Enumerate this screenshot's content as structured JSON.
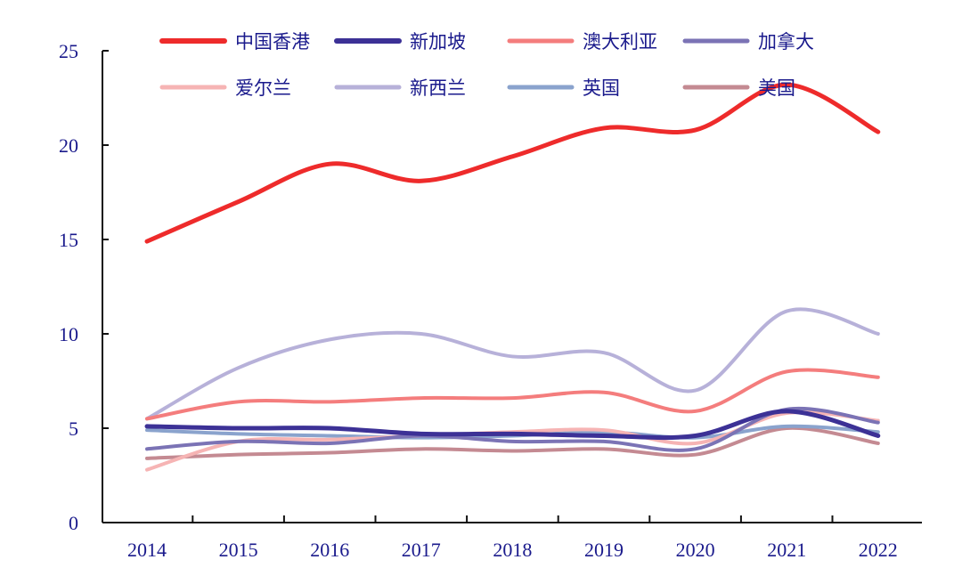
{
  "chart_data": {
    "type": "line",
    "title": "",
    "xlabel": "",
    "ylabel": "",
    "x": [
      "2014",
      "2015",
      "2016",
      "2017",
      "2018",
      "2019",
      "2020",
      "2021",
      "2022"
    ],
    "ylim": [
      0,
      25
    ],
    "yticks": [
      "0",
      "5",
      "10",
      "15",
      "20",
      "25"
    ],
    "grid": false,
    "smooth": true,
    "legend_position": "top",
    "series": [
      {
        "name": "中国香港",
        "color": "#ee2b2b",
        "width": 5,
        "values": [
          14.9,
          17.0,
          19.0,
          18.1,
          19.4,
          20.9,
          20.8,
          23.2,
          20.7
        ]
      },
      {
        "name": "新加坡",
        "color": "#3c3196",
        "width": 5,
        "values": [
          5.1,
          5.0,
          5.0,
          4.7,
          4.7,
          4.6,
          4.6,
          5.9,
          4.6
        ]
      },
      {
        "name": "澳大利亚",
        "color": "#f47d7d",
        "width": 4,
        "values": [
          5.5,
          6.4,
          6.4,
          6.6,
          6.6,
          6.9,
          5.9,
          8.0,
          7.7
        ]
      },
      {
        "name": "加拿大",
        "color": "#7b73b5",
        "width": 4,
        "values": [
          3.9,
          4.3,
          4.2,
          4.6,
          4.3,
          4.3,
          3.9,
          6.0,
          5.3
        ]
      },
      {
        "name": "爱尔兰",
        "color": "#f6b4b4",
        "width": 4,
        "values": [
          2.8,
          4.3,
          4.4,
          4.6,
          4.8,
          4.9,
          4.2,
          5.8,
          5.4
        ]
      },
      {
        "name": "新西兰",
        "color": "#b7b1d9",
        "width": 4,
        "values": [
          5.5,
          8.2,
          9.7,
          10.0,
          8.8,
          9.0,
          7.0,
          11.2,
          10.0
        ]
      },
      {
        "name": "英国",
        "color": "#8aa3cd",
        "width": 4,
        "values": [
          4.9,
          4.7,
          4.6,
          4.5,
          4.6,
          4.8,
          4.5,
          5.1,
          4.8
        ]
      },
      {
        "name": "美国",
        "color": "#c48a92",
        "width": 4,
        "values": [
          3.4,
          3.6,
          3.7,
          3.9,
          3.8,
          3.9,
          3.6,
          5.0,
          4.2
        ]
      }
    ]
  }
}
